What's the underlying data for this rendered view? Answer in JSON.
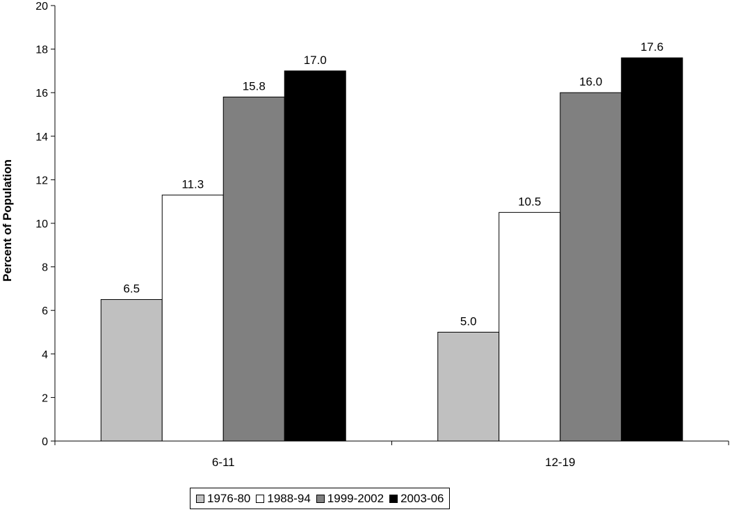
{
  "chart_data": {
    "type": "bar",
    "title": "",
    "xlabel": "",
    "ylabel": "Percent of Population",
    "ylim": [
      0,
      20
    ],
    "yticks": [
      0,
      2,
      4,
      6,
      8,
      10,
      12,
      14,
      16,
      18,
      20
    ],
    "categories": [
      "6-11",
      "12-19"
    ],
    "series": [
      {
        "name": "1976-80",
        "color": "#c0c0c0",
        "values": [
          6.5,
          5.0
        ],
        "labels": [
          "6.5",
          "5.0"
        ]
      },
      {
        "name": "1988-94",
        "color": "#ffffff",
        "values": [
          11.3,
          10.5
        ],
        "labels": [
          "11.3",
          "10.5"
        ]
      },
      {
        "name": "1999-2002",
        "color": "#808080",
        "values": [
          15.8,
          16.0
        ],
        "labels": [
          "15.8",
          "16.0"
        ]
      },
      {
        "name": "2003-06",
        "color": "#000000",
        "values": [
          17.0,
          17.6
        ],
        "labels": [
          "17.0",
          "17.6"
        ]
      }
    ],
    "grid": false,
    "legend": "bottom"
  }
}
